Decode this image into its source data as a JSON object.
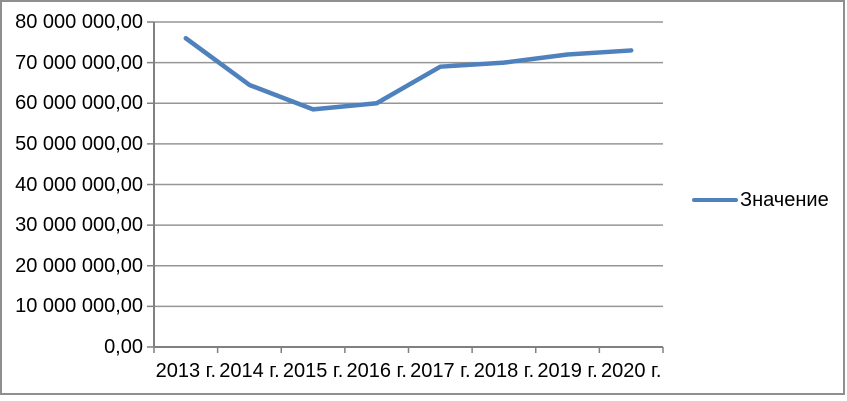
{
  "chart_data": {
    "type": "line",
    "title": "",
    "xlabel": "",
    "ylabel": "",
    "categories": [
      "2013 г.",
      "2014 г.",
      "2015 г.",
      "2016 г.",
      "2017 г.",
      "2018 г.",
      "2019 г.",
      "2020 г."
    ],
    "series": [
      {
        "name": "Значение",
        "values": [
          76000000,
          64500000,
          58500000,
          60000000,
          69000000,
          70000000,
          72000000,
          73000000
        ],
        "color": "#4F81BD"
      }
    ],
    "ylim": [
      0,
      80000000
    ],
    "ytick_step": 10000000,
    "ytick_labels": [
      "0,00",
      "10 000 000,00",
      "20 000 000,00",
      "30 000 000,00",
      "40 000 000,00",
      "50 000 000,00",
      "60 000 000,00",
      "70 000 000,00",
      "80 000 000,00"
    ],
    "grid": "horizontal-only",
    "legend_position": "right",
    "colors": {
      "line": "#4F81BD",
      "gridline": "#969696",
      "axis": "#808080",
      "text": "#000000",
      "frame": "#8f8f8f",
      "background": "#ffffff"
    }
  },
  "legend": {
    "label": "Значение"
  }
}
